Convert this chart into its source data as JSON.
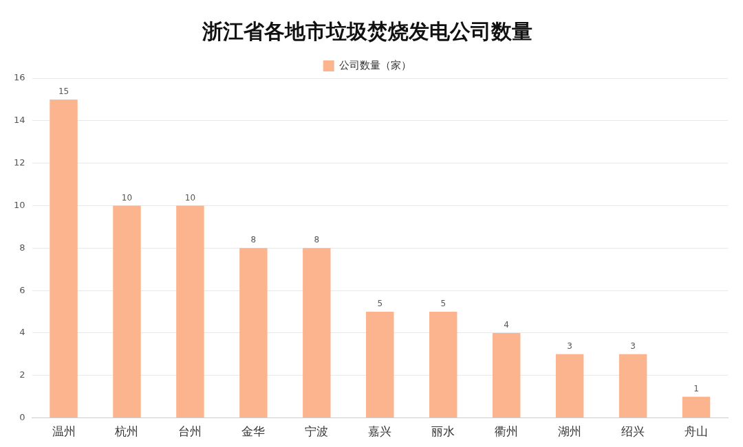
{
  "chart_data": {
    "type": "bar",
    "title": "浙江省各地市垃圾焚烧发电公司数量",
    "categories": [
      "温州",
      "杭州",
      "台州",
      "金华",
      "宁波",
      "嘉兴",
      "丽水",
      "衢州",
      "湖州",
      "绍兴",
      "舟山"
    ],
    "series": [
      {
        "name": "公司数量（家）",
        "color": "#fcb48e",
        "values": [
          15,
          10,
          10,
          8,
          8,
          5,
          5,
          4,
          3,
          3,
          1
        ]
      }
    ],
    "ylim": [
      0,
      16
    ],
    "yticks": [
      0,
      2,
      4,
      6,
      8,
      10,
      12,
      14,
      16
    ],
    "grid": "y",
    "legend": "top",
    "data_labels": true
  }
}
